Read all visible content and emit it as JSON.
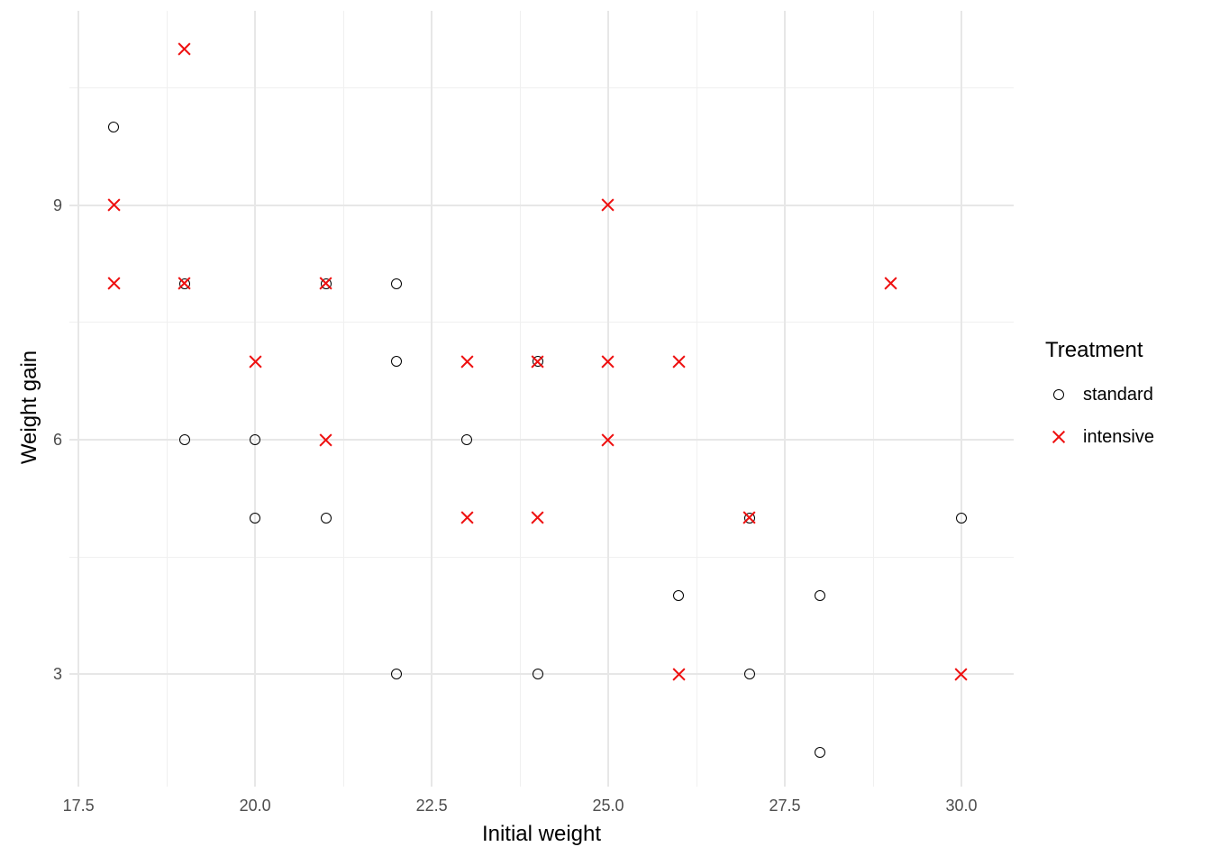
{
  "chart_data": {
    "type": "scatter",
    "xlabel": "Initial weight",
    "ylabel": "Weight gain",
    "xlim": [
      17.37,
      30.74
    ],
    "ylim": [
      1.56,
      11.49
    ],
    "x_ticks": {
      "values": [
        17.5,
        20.0,
        22.5,
        25.0,
        27.5,
        30.0
      ],
      "labels": [
        "17.5",
        "20.0",
        "22.5",
        "25.0",
        "27.5",
        "30.0"
      ]
    },
    "x_minor": [
      18.75,
      21.25,
      23.75,
      26.25,
      28.75
    ],
    "y_ticks": {
      "values": [
        3,
        6,
        9
      ],
      "labels": [
        "3",
        "6",
        "9"
      ]
    },
    "y_minor": [
      4.5,
      7.5,
      10.5
    ],
    "grid": "on",
    "legend": {
      "title": "Treatment",
      "position": "right"
    },
    "series": [
      {
        "name": "standard",
        "marker": "open-circle",
        "color": "#000000",
        "points": [
          [
            18,
            10
          ],
          [
            19,
            8
          ],
          [
            21,
            8
          ],
          [
            22,
            8
          ],
          [
            22,
            7
          ],
          [
            24,
            7
          ],
          [
            19,
            6
          ],
          [
            20,
            6
          ],
          [
            23,
            6
          ],
          [
            20,
            5
          ],
          [
            21,
            5
          ],
          [
            27,
            5
          ],
          [
            30,
            5
          ],
          [
            26,
            4
          ],
          [
            28,
            4
          ],
          [
            22,
            3
          ],
          [
            24,
            3
          ],
          [
            27,
            3
          ],
          [
            28,
            2
          ]
        ]
      },
      {
        "name": "intensive",
        "marker": "x",
        "color": "#EE1111",
        "points": [
          [
            19,
            11
          ],
          [
            18,
            9
          ],
          [
            25,
            9
          ],
          [
            18,
            8
          ],
          [
            19,
            8
          ],
          [
            21,
            8
          ],
          [
            29,
            8
          ],
          [
            20,
            7
          ],
          [
            23,
            7
          ],
          [
            24,
            7
          ],
          [
            25,
            7
          ],
          [
            26,
            7
          ],
          [
            21,
            6
          ],
          [
            25,
            6
          ],
          [
            23,
            5
          ],
          [
            24,
            5
          ],
          [
            27,
            5
          ],
          [
            26,
            3
          ],
          [
            30,
            3
          ]
        ]
      }
    ],
    "colors": {
      "grid_major": "#E7E7E7",
      "grid_minor": "#F0F0F0",
      "tick_label": "#4D4D4D",
      "axis_title": "#000000"
    }
  }
}
